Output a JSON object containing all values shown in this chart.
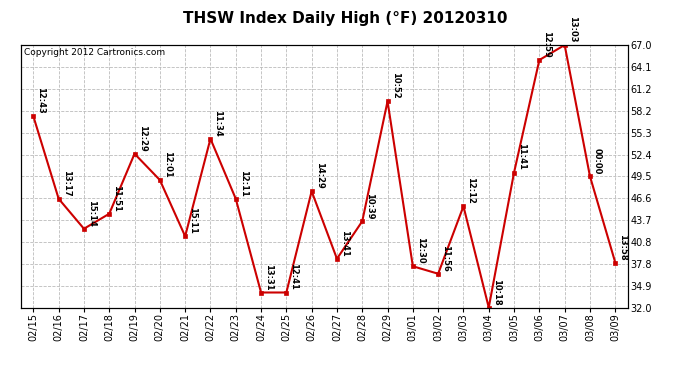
{
  "title": "THSW Index Daily High (°F) 20120310",
  "copyright": "Copyright 2012 Cartronics.com",
  "dates": [
    "02/15",
    "02/16",
    "02/17",
    "02/18",
    "02/19",
    "02/20",
    "02/21",
    "02/22",
    "02/23",
    "02/24",
    "02/25",
    "02/26",
    "02/27",
    "02/28",
    "02/29",
    "03/01",
    "03/02",
    "03/03",
    "03/04",
    "03/05",
    "03/06",
    "03/07",
    "03/08",
    "03/09"
  ],
  "values": [
    57.5,
    46.5,
    42.5,
    44.5,
    52.5,
    49.0,
    41.5,
    54.5,
    46.5,
    34.0,
    34.0,
    47.5,
    38.5,
    43.5,
    59.5,
    37.5,
    36.5,
    45.5,
    32.0,
    50.0,
    65.0,
    67.0,
    49.5,
    38.0
  ],
  "time_labels": [
    "12:43",
    "13:17",
    "15:14",
    "11:51",
    "12:29",
    "12:01",
    "15:11",
    "11:34",
    "12:11",
    "13:31",
    "12:41",
    "14:29",
    "13:41",
    "10:39",
    "10:52",
    "12:30",
    "11:56",
    "12:12",
    "10:18",
    "11:41",
    "12:59",
    "13:03",
    "00:00",
    "13:58"
  ],
  "ylim": [
    32.0,
    67.0
  ],
  "yticks": [
    32.0,
    34.9,
    37.8,
    40.8,
    43.7,
    46.6,
    49.5,
    52.4,
    55.3,
    58.2,
    61.2,
    64.1,
    67.0
  ],
  "line_color": "#cc0000",
  "marker_color": "#cc0000",
  "bg_color": "#ffffff",
  "grid_color": "#bbbbbb",
  "title_fontsize": 11,
  "annotation_fontsize": 6,
  "copyright_fontsize": 6.5,
  "tick_fontsize": 7
}
